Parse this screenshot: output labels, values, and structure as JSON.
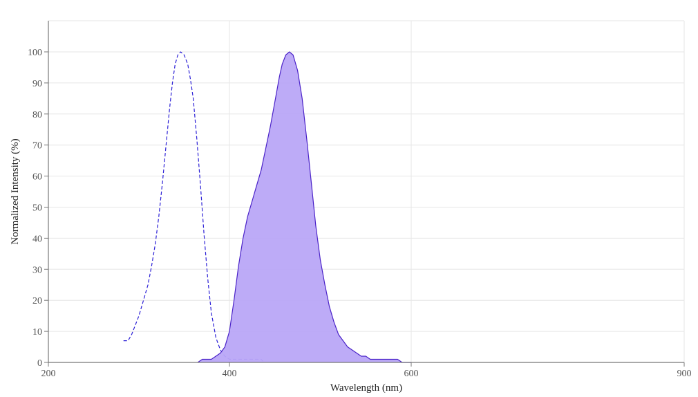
{
  "chart_data": {
    "type": "area",
    "title": "",
    "xlabel": "Wavelength (nm)",
    "ylabel": "Normalized Intensity (%)",
    "xlim": [
      200,
      900
    ],
    "ylim": [
      0,
      110
    ],
    "x_ticks": [
      200,
      400,
      600,
      900
    ],
    "y_ticks": [
      0,
      10,
      20,
      30,
      40,
      50,
      60,
      70,
      80,
      90,
      100
    ],
    "grid": true,
    "legend": "none",
    "series": [
      {
        "style": "dashed",
        "color": "#2b1fd6",
        "fill": "none",
        "x": [
          283,
          288,
          292,
          296,
          300,
          305,
          310,
          314,
          318,
          322,
          326,
          330,
          334,
          337,
          340,
          343,
          346,
          350,
          354,
          357,
          360,
          364,
          368,
          372,
          376,
          380,
          385,
          390,
          395,
          400,
          405,
          410,
          415,
          420,
          425,
          430,
          435,
          438
        ],
        "y": [
          7,
          7,
          9,
          12,
          15,
          20,
          25,
          31,
          38,
          47,
          58,
          70,
          82,
          90,
          96,
          99,
          100,
          99,
          96,
          91,
          85,
          72,
          57,
          41,
          27,
          16,
          8,
          4,
          2,
          1,
          1,
          1,
          1,
          1,
          1,
          1,
          1,
          0
        ]
      },
      {
        "style": "solid",
        "color": "#4a22c8",
        "fill": "#b9a7f7",
        "x": [
          365,
          370,
          375,
          380,
          385,
          390,
          395,
          400,
          405,
          410,
          415,
          420,
          425,
          430,
          435,
          440,
          445,
          450,
          455,
          458,
          462,
          466,
          470,
          475,
          480,
          485,
          490,
          495,
          500,
          505,
          510,
          515,
          520,
          525,
          530,
          535,
          540,
          545,
          550,
          555,
          560,
          565,
          570,
          575,
          580,
          585,
          590,
          595,
          600
        ],
        "y": [
          0,
          1,
          1,
          1,
          2,
          3,
          5,
          10,
          20,
          31,
          40,
          47,
          52,
          57,
          62,
          69,
          76,
          84,
          92,
          96,
          99,
          100,
          99,
          94,
          85,
          72,
          58,
          44,
          33,
          25,
          18,
          13,
          9,
          7,
          5,
          4,
          3,
          2,
          2,
          1,
          1,
          1,
          1,
          1,
          1,
          1,
          0,
          0,
          0
        ]
      }
    ]
  }
}
